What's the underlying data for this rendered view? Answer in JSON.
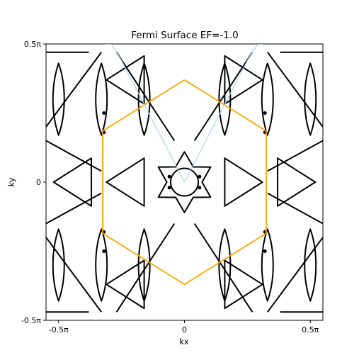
{
  "chart_data": {
    "type": "line",
    "title": "Fermi Surface EF=-1.0",
    "xlabel": "kx",
    "ylabel": "ky",
    "xlim": [
      -0.55,
      0.55
    ],
    "ylim": [
      -0.5,
      0.5
    ],
    "x_ticks": [
      {
        "value": -0.5,
        "label": "-0.5π"
      },
      {
        "value": 0,
        "label": "0"
      },
      {
        "value": 0.5,
        "label": "0.5π"
      }
    ],
    "y_ticks": [
      {
        "value": -0.5,
        "label": "-0.5π"
      },
      {
        "value": 0,
        "label": "0"
      },
      {
        "value": 0.5,
        "label": "0.5π"
      }
    ],
    "grid": false,
    "legend": "none",
    "series": [
      {
        "kind": "brillouin-zone-hexagon",
        "color": "#ffa500",
        "x": [
          0,
          0.325,
          0.325,
          0,
          -0.325,
          -0.325,
          0
        ],
        "y": [
          0.37,
          0.185,
          -0.185,
          -0.37,
          -0.185,
          0.185,
          0.37
        ]
      },
      {
        "kind": "high-symmetry-path",
        "color": "#add8e6",
        "x": [
          -0.325,
          -0.25,
          0,
          0.25,
          0.325
        ],
        "y": [
          0.55,
          0.44,
          0,
          0.44,
          0.55
        ]
      },
      {
        "kind": "fermi-contours",
        "color": "#000000",
        "description_values": {
          "central_ring_radius": 0.055,
          "central_star_radius": 0.11,
          "mid_triangle_centers": [
            [
              -0.5,
              0
            ],
            [
              0.5,
              0
            ],
            [
              -0.25,
              0.4
            ],
            [
              0.25,
              0.4
            ],
            [
              -0.25,
              -0.4
            ],
            [
              0.25,
              -0.4
            ]
          ],
          "inner_triangle_centers": [
            [
              -0.22,
              0
            ],
            [
              0.22,
              0
            ],
            [
              -0.11,
              0.19
            ],
            [
              0.11,
              0.19
            ],
            [
              -0.11,
              -0.19
            ],
            [
              0.11,
              -0.19
            ]
          ]
        }
      }
    ]
  }
}
